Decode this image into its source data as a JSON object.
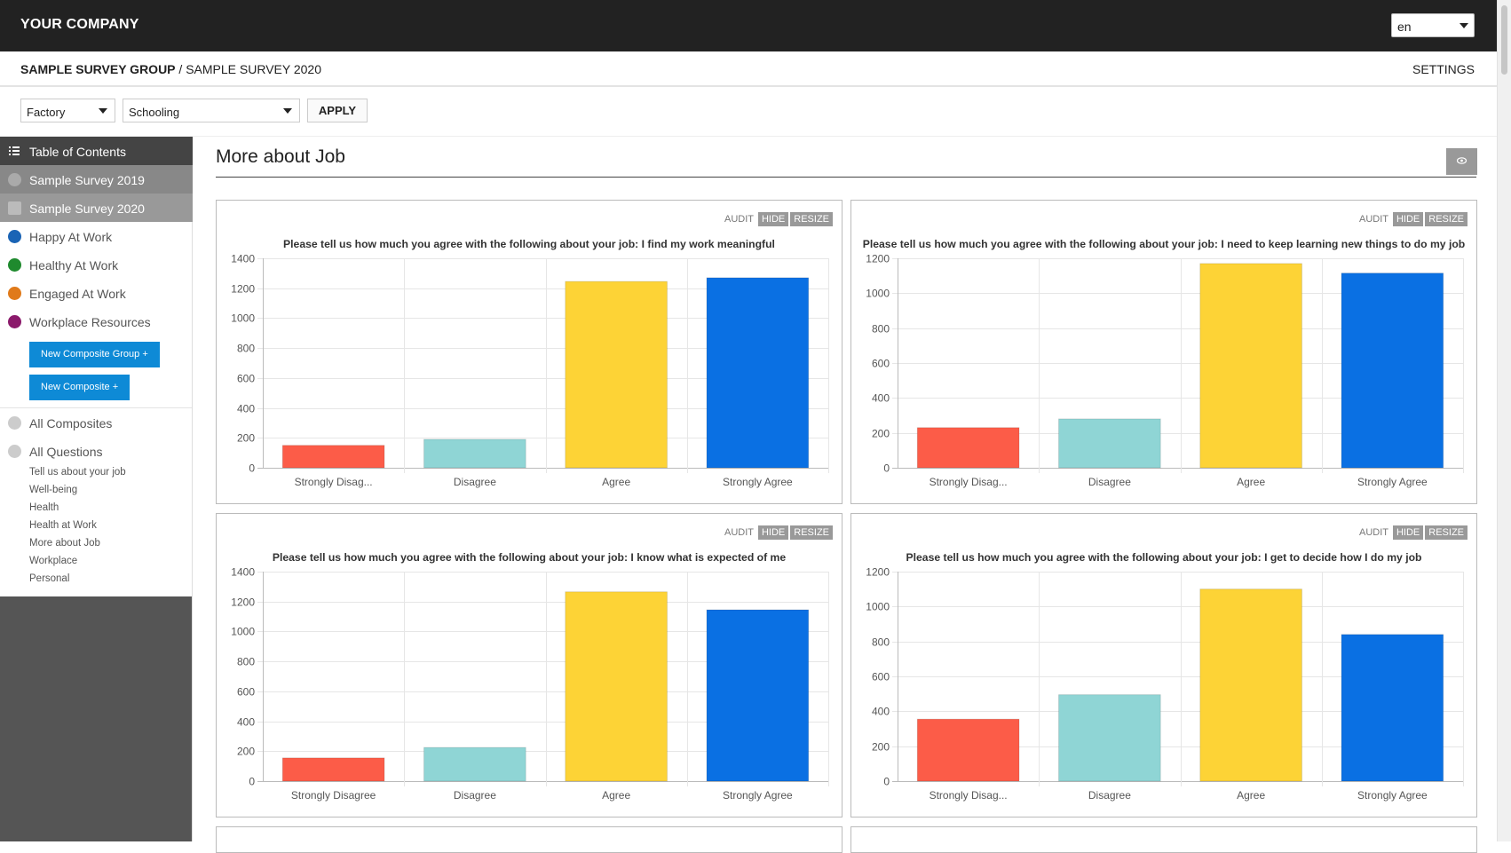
{
  "app": {
    "brand": "YOUR COMPANY",
    "language": "en"
  },
  "breadcrumb": {
    "group": "SAMPLE SURVEY GROUP",
    "separator": " / ",
    "survey": "SAMPLE SURVEY 2020",
    "settings": "SETTINGS"
  },
  "filters": {
    "filter1": "Factory",
    "filter2": "Schooling",
    "apply": "APPLY"
  },
  "sidebar": {
    "toc": "Table of Contents",
    "surveys": [
      "Sample Survey 2019",
      "Sample Survey 2020"
    ],
    "groups": [
      {
        "label": "Happy At Work",
        "color": "#1a64b5"
      },
      {
        "label": "Healthy At Work",
        "color": "#1f8a2e"
      },
      {
        "label": "Engaged At Work",
        "color": "#e07a1a"
      },
      {
        "label": "Workplace Resources",
        "color": "#8b1a6b"
      }
    ],
    "new_group_btn": "New Composite Group +",
    "new_composite_btn": "New Composite +",
    "all_composites": "All Composites",
    "all_questions": "All Questions",
    "sections": [
      "Tell us about your job",
      "Well-being",
      "Health",
      "Health at Work",
      "More about Job",
      "Workplace",
      "Personal"
    ]
  },
  "main": {
    "title": "More about Job",
    "audit": "AUDIT",
    "hide": "HIDE",
    "resize": "RESIZE"
  },
  "chart_data": [
    {
      "type": "bar",
      "title": "Please tell us how much you agree with the following about your job: I find my work meaningful",
      "categories": [
        "Strongly Disag...",
        "Disagree",
        "Agree",
        "Strongly Agree"
      ],
      "values": [
        150,
        190,
        1245,
        1270
      ],
      "ylim": [
        0,
        1400
      ],
      "yticks": [
        0,
        200,
        400,
        600,
        800,
        1000,
        1200,
        1400
      ],
      "colors": [
        "#fc5c48",
        "#8fd5d5",
        "#fdd336",
        "#0a70e3"
      ]
    },
    {
      "type": "bar",
      "title": "Please tell us how much you agree with the following about your job: I need to keep learning new things to do my job",
      "categories": [
        "Strongly Disag...",
        "Disagree",
        "Agree",
        "Strongly Agree"
      ],
      "values": [
        230,
        280,
        1170,
        1115
      ],
      "ylim": [
        0,
        1200
      ],
      "yticks": [
        0,
        200,
        400,
        600,
        800,
        1000,
        1200
      ],
      "colors": [
        "#fc5c48",
        "#8fd5d5",
        "#fdd336",
        "#0a70e3"
      ]
    },
    {
      "type": "bar",
      "title": "Please tell us how much you agree with the following about your job: I know what is expected of me",
      "categories": [
        "Strongly Disagree",
        "Disagree",
        "Agree",
        "Strongly Agree"
      ],
      "values": [
        155,
        225,
        1265,
        1145
      ],
      "ylim": [
        0,
        1400
      ],
      "yticks": [
        0,
        200,
        400,
        600,
        800,
        1000,
        1200,
        1400
      ],
      "colors": [
        "#fc5c48",
        "#8fd5d5",
        "#fdd336",
        "#0a70e3"
      ]
    },
    {
      "type": "bar",
      "title": "Please tell us how much you agree with the following about your job: I get to decide how I do my job",
      "categories": [
        "Strongly Disag...",
        "Disagree",
        "Agree",
        "Strongly Agree"
      ],
      "values": [
        355,
        495,
        1100,
        840
      ],
      "ylim": [
        0,
        1200
      ],
      "yticks": [
        0,
        200,
        400,
        600,
        800,
        1000,
        1200
      ],
      "colors": [
        "#fc5c48",
        "#8fd5d5",
        "#fdd336",
        "#0a70e3"
      ]
    }
  ]
}
